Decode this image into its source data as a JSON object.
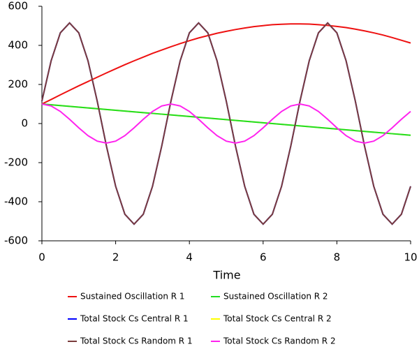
{
  "chart_data": {
    "type": "line",
    "xlabel": "Time",
    "x": [
      0,
      0.25,
      0.5,
      0.75,
      1,
      1.25,
      1.5,
      1.75,
      2,
      2.25,
      2.5,
      2.75,
      3,
      3.25,
      3.5,
      3.75,
      4,
      4.25,
      4.5,
      4.75,
      5,
      5.25,
      5.5,
      5.75,
      6,
      6.25,
      6.5,
      6.75,
      7,
      7.25,
      7.5,
      7.75,
      8,
      8.25,
      8.5,
      8.75,
      9,
      9.25,
      9.5,
      9.75,
      10
    ],
    "xlim": [
      0,
      10
    ],
    "xticks": [
      0,
      2,
      4,
      6,
      8,
      10
    ],
    "ylim": [
      -600,
      600
    ],
    "yticks": [
      -600,
      -400,
      -200,
      0,
      200,
      400,
      600
    ],
    "series": [
      {
        "name": "Sustained Oscillation R 1",
        "color": "#ee1111",
        "values": [
          100,
          123,
          147,
          170,
          193,
          215,
          237,
          259,
          280,
          301,
          321,
          340,
          359,
          376,
          393,
          409,
          424,
          438,
          450,
          462,
          472,
          481,
          489,
          496,
          501,
          506,
          508,
          510,
          510,
          509,
          506,
          502,
          497,
          491,
          483,
          474,
          464,
          453,
          440,
          426,
          412
        ]
      },
      {
        "name": "Sustained Oscillation R 2",
        "color": "#22dd22",
        "values": [
          100,
          96,
          92,
          88,
          84,
          80,
          76,
          72,
          68,
          64,
          60,
          56,
          52,
          48,
          44,
          40,
          36,
          32,
          28,
          24,
          20,
          16,
          12,
          8,
          4,
          0,
          -4,
          -8,
          -12,
          -16,
          -20,
          -24,
          -28,
          -32,
          -36,
          -40,
          -44,
          -48,
          -52,
          -56,
          -60
        ]
      },
      {
        "name": "Total Stock Cs Central R 1",
        "color": "#0000ff",
        "values": [
          115,
          321,
          464,
          515,
          464,
          321,
          115,
          -115,
          -321,
          -464,
          -515,
          -464,
          -321,
          -115,
          115,
          321,
          464,
          515,
          464,
          321,
          115,
          -115,
          -321,
          -464,
          -515,
          -464,
          -321,
          -115,
          115,
          321,
          464,
          515,
          464,
          321,
          115,
          -115,
          -321,
          -464,
          -515,
          -464,
          -321
        ]
      },
      {
        "name": "Total Stock Cs Central R 2",
        "color": "#ffff00",
        "values": [
          100,
          96,
          92,
          88,
          84,
          80,
          76,
          72,
          68,
          64,
          60,
          56,
          52,
          48,
          44,
          40,
          36,
          32,
          28,
          24,
          20,
          16,
          12,
          8,
          4,
          0,
          -4,
          -8,
          -12,
          -16,
          -20,
          -24,
          -28,
          -32,
          -36,
          -40,
          -44,
          -48,
          -52,
          -56,
          -60
        ]
      },
      {
        "name": "Total Stock Cs Random R 1",
        "color": "#7a3c3c",
        "values": [
          115,
          321,
          464,
          515,
          464,
          321,
          115,
          -115,
          -321,
          -464,
          -515,
          -464,
          -321,
          -115,
          115,
          321,
          464,
          515,
          464,
          321,
          115,
          -115,
          -321,
          -464,
          -515,
          -464,
          -321,
          -115,
          115,
          321,
          464,
          515,
          464,
          321,
          115,
          -115,
          -321,
          -464,
          -515,
          -464,
          -321
        ]
      },
      {
        "name": "Total Stock Cs Random R 2",
        "color": "#ff22ee",
        "values": [
          100,
          90,
          62,
          22,
          -22,
          -62,
          -90,
          -100,
          -90,
          -62,
          -22,
          22,
          62,
          90,
          100,
          90,
          62,
          22,
          -22,
          -62,
          -90,
          -100,
          -90,
          -62,
          -22,
          22,
          62,
          90,
          100,
          90,
          62,
          22,
          -22,
          -62,
          -90,
          -100,
          -90,
          -62,
          -22,
          22,
          62
        ]
      }
    ]
  }
}
